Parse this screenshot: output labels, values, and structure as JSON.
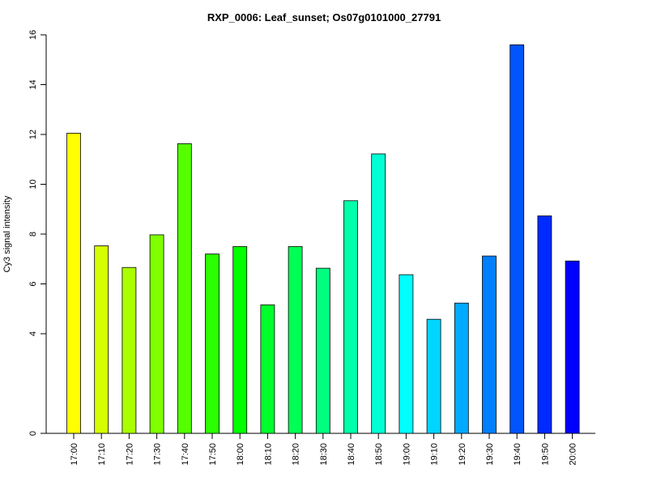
{
  "chart_data": {
    "type": "bar",
    "title": "RXP_0006: Leaf_sunset; Os07g0101000_27791",
    "xlabel": "",
    "ylabel": "Cy3 signal intensity",
    "ylim": [
      0,
      16
    ],
    "yticks": [
      0,
      4,
      6,
      8,
      10,
      12,
      14,
      16
    ],
    "grid": false,
    "legend": "none",
    "categories": [
      "17:00",
      "17:10",
      "17:20",
      "17:30",
      "17:40",
      "17:50",
      "18:00",
      "18:10",
      "18:20",
      "18:30",
      "18:40",
      "18:50",
      "19:00",
      "19:10",
      "19:20",
      "19:30",
      "19:40",
      "19:50",
      "20:00"
    ],
    "values": [
      12.05,
      7.53,
      6.66,
      7.97,
      11.63,
      7.2,
      7.5,
      5.16,
      7.5,
      6.63,
      9.34,
      11.22,
      6.37,
      4.58,
      5.23,
      7.12,
      15.6,
      8.73,
      6.92
    ],
    "colors": [
      "#FFFF00",
      "#D5FF00",
      "#AAFF00",
      "#80FF00",
      "#55FF00",
      "#2BFF00",
      "#00FF00",
      "#00FF2B",
      "#00FF55",
      "#00FF80",
      "#00FFAA",
      "#00FFD5",
      "#00FFFF",
      "#00D5FF",
      "#00AAFF",
      "#0080FF",
      "#0055FF",
      "#002BFF",
      "#0000FF"
    ]
  }
}
